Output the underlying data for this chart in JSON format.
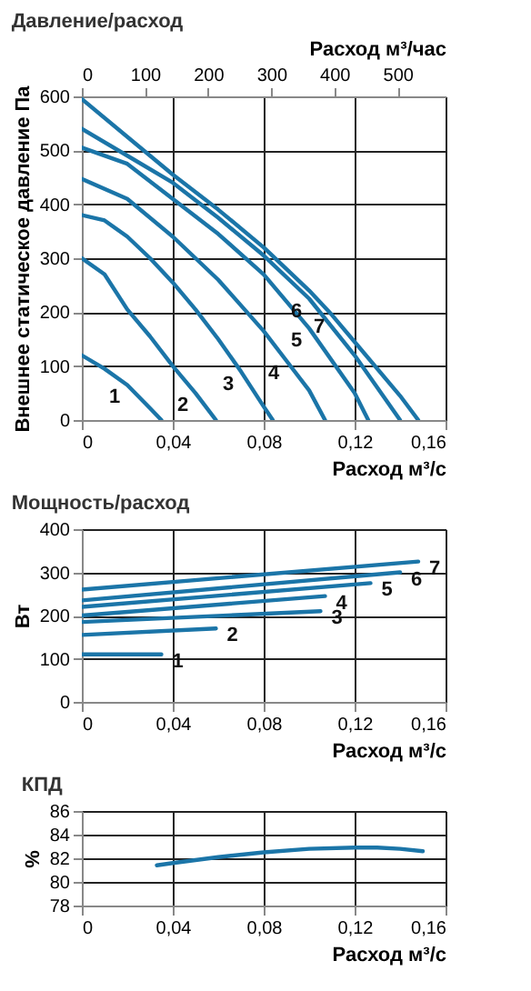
{
  "chart_data": [
    {
      "type": "line",
      "title": "Давление/расход",
      "xlabel": "Расход м³/с",
      "x2label": "Расход м³/час",
      "ylabel": "Внешнее статическое давление Па",
      "grid": true,
      "xlim": [
        0,
        0.16
      ],
      "xticks": [
        0,
        {
          "value": 0.04,
          "label": "0,04"
        },
        {
          "value": 0.08,
          "label": "0,08"
        },
        {
          "value": 0.12,
          "label": "0,12"
        },
        {
          "value": 0.16,
          "label": "0,16"
        }
      ],
      "x2lim": [
        0,
        576
      ],
      "x2ticks": [
        0,
        100,
        200,
        300,
        400,
        500
      ],
      "ylim": [
        0,
        600
      ],
      "yticks": [
        0,
        100,
        200,
        300,
        400,
        500,
        600
      ],
      "series": [
        {
          "color": "#1b75a8",
          "x": [
            0,
            0.01,
            0.02,
            0.03,
            0.035
          ],
          "values": [
            120,
            95,
            65,
            22,
            0
          ]
        },
        {
          "color": "#1b75a8",
          "x": [
            0,
            0.01,
            0.02,
            0.03,
            0.04,
            0.05,
            0.059
          ],
          "values": [
            300,
            270,
            205,
            155,
            100,
            50,
            0
          ]
        },
        {
          "color": "#1b75a8",
          "x": [
            0,
            0.01,
            0.02,
            0.03,
            0.04,
            0.05,
            0.06,
            0.07,
            0.08,
            0.084
          ],
          "values": [
            380,
            370,
            340,
            300,
            255,
            205,
            150,
            90,
            25,
            0
          ]
        },
        {
          "color": "#1b75a8",
          "x": [
            0,
            0.02,
            0.04,
            0.06,
            0.08,
            0.09,
            0.1,
            0.107
          ],
          "values": [
            447,
            410,
            340,
            260,
            165,
            110,
            55,
            0
          ]
        },
        {
          "color": "#1b75a8",
          "x": [
            0,
            0.02,
            0.04,
            0.06,
            0.08,
            0.1,
            0.12,
            0.126
          ],
          "values": [
            505,
            475,
            410,
            345,
            270,
            170,
            50,
            0
          ]
        },
        {
          "color": "#1b75a8",
          "x": [
            0,
            0.02,
            0.04,
            0.06,
            0.08,
            0.1,
            0.12,
            0.14
          ],
          "values": [
            540,
            490,
            440,
            375,
            305,
            225,
            120,
            0
          ]
        },
        {
          "color": "#1b75a8",
          "x": [
            0,
            0.02,
            0.04,
            0.06,
            0.08,
            0.1,
            0.11,
            0.12,
            0.14,
            0.148
          ],
          "values": [
            595,
            525,
            455,
            390,
            320,
            240,
            195,
            145,
            45,
            0
          ]
        }
      ],
      "annotations": [
        {
          "text": "1",
          "x": 0.02,
          "y": 65
        },
        {
          "text": "2",
          "x": 0.05,
          "y": 50
        },
        {
          "text": "3",
          "x": 0.07,
          "y": 90
        },
        {
          "text": "4",
          "x": 0.09,
          "y": 110
        },
        {
          "text": "5",
          "x": 0.1,
          "y": 170
        },
        {
          "text": "6",
          "x": 0.1,
          "y": 225
        },
        {
          "text": "7",
          "x": 0.11,
          "y": 195
        }
      ]
    },
    {
      "type": "line",
      "title": "Мощность/расход",
      "xlabel": "Расход м³/с",
      "ylabel": "Вт",
      "grid": true,
      "xlim": [
        0,
        0.16
      ],
      "xticks": [
        0,
        {
          "value": 0.04,
          "label": "0,04"
        },
        {
          "value": 0.08,
          "label": "0,08"
        },
        {
          "value": 0.12,
          "label": "0,12"
        },
        {
          "value": 0.16,
          "label": "0,16"
        }
      ],
      "ylim": [
        0,
        400
      ],
      "yticks": [
        0,
        100,
        200,
        300,
        400
      ],
      "series": [
        {
          "color": "#1b75a8",
          "x": [
            0,
            0.035
          ],
          "values": [
            110,
            110
          ]
        },
        {
          "color": "#1b75a8",
          "x": [
            0,
            0.059
          ],
          "values": [
            155,
            170
          ]
        },
        {
          "color": "#1b75a8",
          "x": [
            0,
            0.105
          ],
          "values": [
            185,
            210
          ]
        },
        {
          "color": "#1b75a8",
          "x": [
            0,
            0.107
          ],
          "values": [
            200,
            245
          ]
        },
        {
          "color": "#1b75a8",
          "x": [
            0,
            0.127
          ],
          "values": [
            220,
            275
          ]
        },
        {
          "color": "#1b75a8",
          "x": [
            0,
            0.14
          ],
          "values": [
            235,
            300
          ]
        },
        {
          "color": "#1b75a8",
          "x": [
            0,
            0.148
          ],
          "values": [
            260,
            325
          ]
        }
      ],
      "annotations": [
        {
          "text": "1",
          "x": 0.035,
          "y": 110
        },
        {
          "text": "2",
          "x": 0.059,
          "y": 170
        },
        {
          "text": "3",
          "x": 0.105,
          "y": 210
        },
        {
          "text": "4",
          "x": 0.107,
          "y": 245
        },
        {
          "text": "5",
          "x": 0.127,
          "y": 275
        },
        {
          "text": "6",
          "x": 0.14,
          "y": 300
        },
        {
          "text": "7",
          "x": 0.148,
          "y": 325
        }
      ]
    },
    {
      "type": "line",
      "title": "КПД",
      "xlabel": "Расход м³/с",
      "ylabel": "%",
      "grid": true,
      "xlim": [
        0,
        0.16
      ],
      "xticks": [
        0,
        {
          "value": 0.04,
          "label": "0,04"
        },
        {
          "value": 0.08,
          "label": "0,08"
        },
        {
          "value": 0.12,
          "label": "0,12"
        },
        {
          "value": 0.16,
          "label": "0,16"
        }
      ],
      "ylim": [
        78,
        86
      ],
      "yticks": [
        78,
        80,
        82,
        84,
        86
      ],
      "series": [
        {
          "color": "#1b75a8",
          "x": [
            0.033,
            0.04,
            0.06,
            0.08,
            0.1,
            0.12,
            0.13,
            0.14,
            0.15
          ],
          "values": [
            81.4,
            81.6,
            82.1,
            82.5,
            82.8,
            82.9,
            82.9,
            82.8,
            82.6
          ]
        }
      ]
    }
  ]
}
